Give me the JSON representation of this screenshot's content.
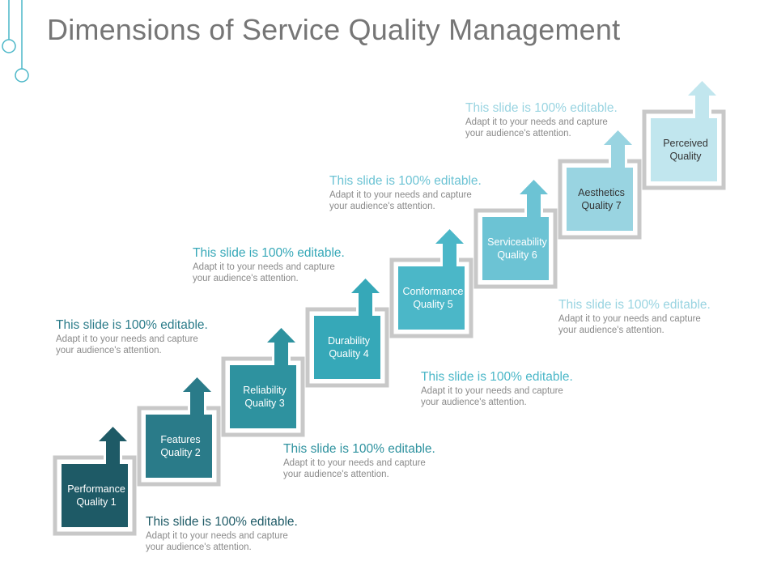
{
  "title": "Dimensions of Service Quality Management",
  "steps": [
    {
      "line1": "Performance",
      "line2": "Quality 1",
      "color": "#1e5a66",
      "text_color": "#ffffff"
    },
    {
      "line1": "Features",
      "line2": "Quality 2",
      "color": "#2a7b89",
      "text_color": "#ffffff"
    },
    {
      "line1": "Reliability",
      "line2": "Quality 3",
      "color": "#2e929f",
      "text_color": "#ffffff"
    },
    {
      "line1": "Durability",
      "line2": "Quality 4",
      "color": "#36a8b8",
      "text_color": "#ffffff"
    },
    {
      "line1": "Conformance",
      "line2": "Quality 5",
      "color": "#4bb7c8",
      "text_color": "#ffffff"
    },
    {
      "line1": "Serviceability",
      "line2": "Quality 6",
      "color": "#6cc3d4",
      "text_color": "#ffffff"
    },
    {
      "line1": "Aesthetics",
      "line2": "Quality 7",
      "color": "#99d4e1",
      "text_color": "#333333"
    },
    {
      "line1": "Perceived",
      "line2": "Quality",
      "color": "#c1e6ee",
      "text_color": "#333333"
    }
  ],
  "callouts": [
    {
      "heading": "This slide is 100% editable.",
      "body": "Adapt it to your needs and capture your audience's attention.",
      "color": "#1e5a66"
    },
    {
      "heading": "This slide is 100% editable.",
      "body": "Adapt it to your needs and capture your audience's attention.",
      "color": "#2a7b89"
    },
    {
      "heading": "This slide is 100% editable.",
      "body": "Adapt it to your needs and capture your audience's attention.",
      "color": "#2e929f"
    },
    {
      "heading": "This slide is 100% editable.",
      "body": "Adapt it to your needs and capture your audience's attention.",
      "color": "#36a8b8"
    },
    {
      "heading": "This slide is 100% editable.",
      "body": "Adapt it to your needs and capture your audience's attention.",
      "color": "#4bb7c8"
    },
    {
      "heading": "This slide is 100% editable.",
      "body": "Adapt it to your needs and capture your audience's attention.",
      "color": "#6cc3d4"
    },
    {
      "heading": "This slide is 100% editable.",
      "body": "Adapt it to your needs and capture your audience's attention.",
      "color": "#99d4e1"
    }
  ],
  "frame_color": "#c8c8c8",
  "deco_color": "#4bb7c8"
}
